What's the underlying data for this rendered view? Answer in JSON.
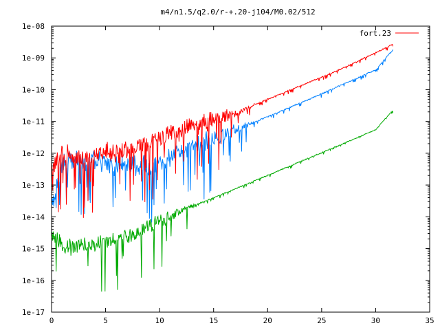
{
  "chart_data": {
    "type": "line",
    "title": "m4/n1.5/q2.0/r-+.20-j104/M0.02/512",
    "xlabel": "",
    "ylabel": "",
    "xlim": [
      0,
      35
    ],
    "ylim": [
      1e-17,
      1e-08
    ],
    "yscale": "log",
    "grid": false,
    "legend_position": "top-right",
    "x_ticks": [
      "0",
      "5",
      "10",
      "15",
      "20",
      "25",
      "30",
      "35"
    ],
    "x_tick_values": [
      0,
      5,
      10,
      15,
      20,
      25,
      30,
      35
    ],
    "y_ticks": [
      "1e-17",
      "1e-16",
      "1e-15",
      "1e-14",
      "1e-13",
      "1e-12",
      "1e-11",
      "1e-10",
      "1e-09",
      "1e-08"
    ],
    "y_tick_values": [
      1e-17,
      1e-16,
      1e-15,
      1e-14,
      1e-13,
      1e-12,
      1e-11,
      1e-10,
      1e-09,
      1e-08
    ],
    "series": [
      {
        "name": "fort.23",
        "color": "#ff0000",
        "points": [
          [
            0,
            3e-13
          ],
          [
            1,
            1e-12
          ],
          [
            2,
            8e-13
          ],
          [
            3,
            6e-13
          ],
          [
            4,
            9e-13
          ],
          [
            5,
            1.1e-12
          ],
          [
            6,
            1e-12
          ],
          [
            7,
            1.2e-12
          ],
          [
            8,
            1.6e-12
          ],
          [
            9,
            2.3e-12
          ],
          [
            10,
            2.9e-12
          ],
          [
            12,
            5e-12
          ],
          [
            14,
            8.5e-12
          ],
          [
            16,
            1.5e-11
          ],
          [
            18,
            2.6e-11
          ],
          [
            20,
            5e-11
          ],
          [
            22,
            9.5e-11
          ],
          [
            24,
            1.8e-10
          ],
          [
            26,
            3.4e-10
          ],
          [
            28,
            7e-10
          ],
          [
            30,
            1.45e-09
          ],
          [
            31.6,
            2.7e-09
          ]
        ],
        "noise_until_x": 15,
        "noise_decades": 1.5
      },
      {
        "name": "",
        "color": "#0080ff",
        "points": [
          [
            0,
            2e-14
          ],
          [
            1,
            5e-13
          ],
          [
            2,
            6e-13
          ],
          [
            3,
            5e-13
          ],
          [
            4,
            6e-13
          ],
          [
            5,
            5e-13
          ],
          [
            6,
            4e-13
          ],
          [
            7,
            4e-13
          ],
          [
            8,
            4e-13
          ],
          [
            9,
            4e-13
          ],
          [
            10,
            5e-13
          ],
          [
            11,
            8e-13
          ],
          [
            12,
            1.2e-12
          ],
          [
            14,
            2.2e-12
          ],
          [
            16,
            4e-12
          ],
          [
            18,
            7.5e-12
          ],
          [
            20,
            1.4e-11
          ],
          [
            22,
            2.7e-11
          ],
          [
            24,
            5.3e-11
          ],
          [
            26,
            1.05e-10
          ],
          [
            28,
            2.1e-10
          ],
          [
            30,
            4.2e-10
          ],
          [
            31.6,
            1.8e-09
          ]
        ],
        "noise_until_x": 15,
        "noise_decades": 1.6
      },
      {
        "name": "",
        "color": "#00aa00",
        "points": [
          [
            0,
            3e-15
          ],
          [
            1,
            1.2e-15
          ],
          [
            2,
            1.1e-15
          ],
          [
            3,
            1.2e-15
          ],
          [
            4,
            1.3e-15
          ],
          [
            5,
            1.5e-15
          ],
          [
            6,
            2e-15
          ],
          [
            7,
            2.6e-15
          ],
          [
            8,
            3.5e-15
          ],
          [
            9,
            5e-15
          ],
          [
            10,
            7.5e-15
          ],
          [
            12,
            1.5e-14
          ],
          [
            14,
            2.9e-14
          ],
          [
            16,
            5.5e-14
          ],
          [
            18,
            1.05e-13
          ],
          [
            20,
            2e-13
          ],
          [
            22,
            3.9e-13
          ],
          [
            24,
            7.5e-13
          ],
          [
            26,
            1.45e-12
          ],
          [
            28,
            2.8e-12
          ],
          [
            30,
            5.5e-12
          ],
          [
            31.6,
            2.3e-11
          ]
        ],
        "noise_until_x": 10,
        "noise_decades": 1.3
      }
    ]
  }
}
